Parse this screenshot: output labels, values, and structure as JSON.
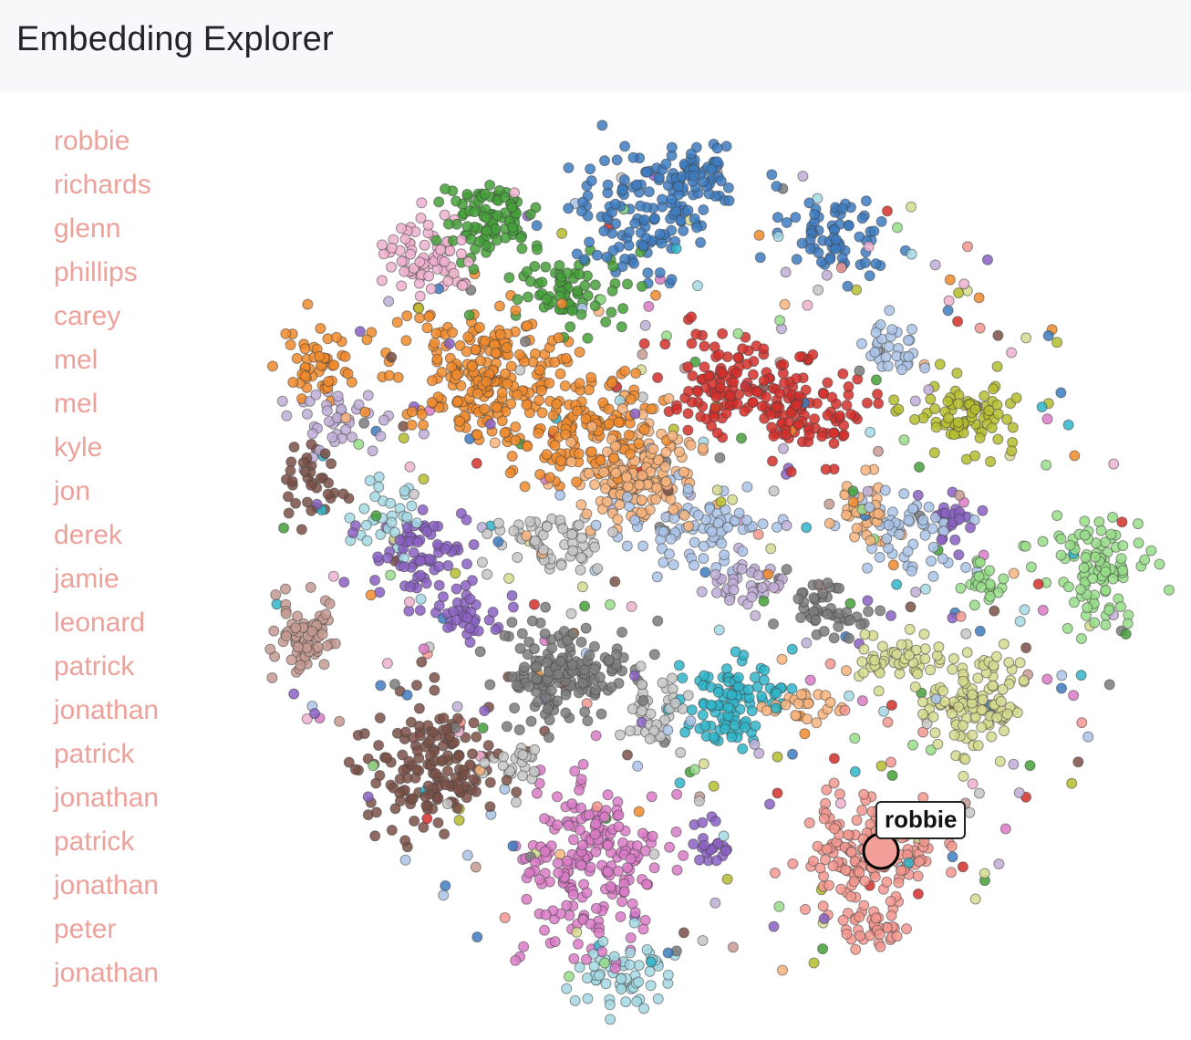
{
  "header": {
    "title": "Embedding Explorer"
  },
  "sidebar": {
    "items": [
      {
        "label": "robbie"
      },
      {
        "label": "richards"
      },
      {
        "label": "glenn"
      },
      {
        "label": "phillips"
      },
      {
        "label": "carey"
      },
      {
        "label": "mel"
      },
      {
        "label": "mel"
      },
      {
        "label": "kyle"
      },
      {
        "label": "jon"
      },
      {
        "label": "derek"
      },
      {
        "label": "jamie"
      },
      {
        "label": "leonard"
      },
      {
        "label": "patrick"
      },
      {
        "label": "jonathan"
      },
      {
        "label": "patrick"
      },
      {
        "label": "jonathan"
      },
      {
        "label": "patrick"
      },
      {
        "label": "jonathan"
      },
      {
        "label": "peter"
      },
      {
        "label": "jonathan"
      }
    ],
    "color": "#eca29b"
  },
  "scatter": {
    "tooltip_label": "robbie",
    "highlight_color": "#f4a09a",
    "cluster_colors": {
      "blue": "#3d7bbf",
      "green": "#45a03a",
      "orange": "#f08a2c",
      "light_orange": "#f7b37b",
      "red": "#d42f2a",
      "pink": "#eeb1cf",
      "purple": "#8a60c2",
      "brown": "#7a5047",
      "light_brown": "#c49a91",
      "gray": "#7b7b7b",
      "light_gray": "#c5c5c5",
      "cyan": "#2fb5c9",
      "light_cyan": "#a3d8e3",
      "magenta": "#d97ac6",
      "salmon": "#f2978e",
      "olive": "#b5bd2e",
      "light_olive": "#d5d98e",
      "light_green": "#98dd8a",
      "light_blue": "#aac3e6",
      "lavender": "#c0aed7"
    }
  }
}
